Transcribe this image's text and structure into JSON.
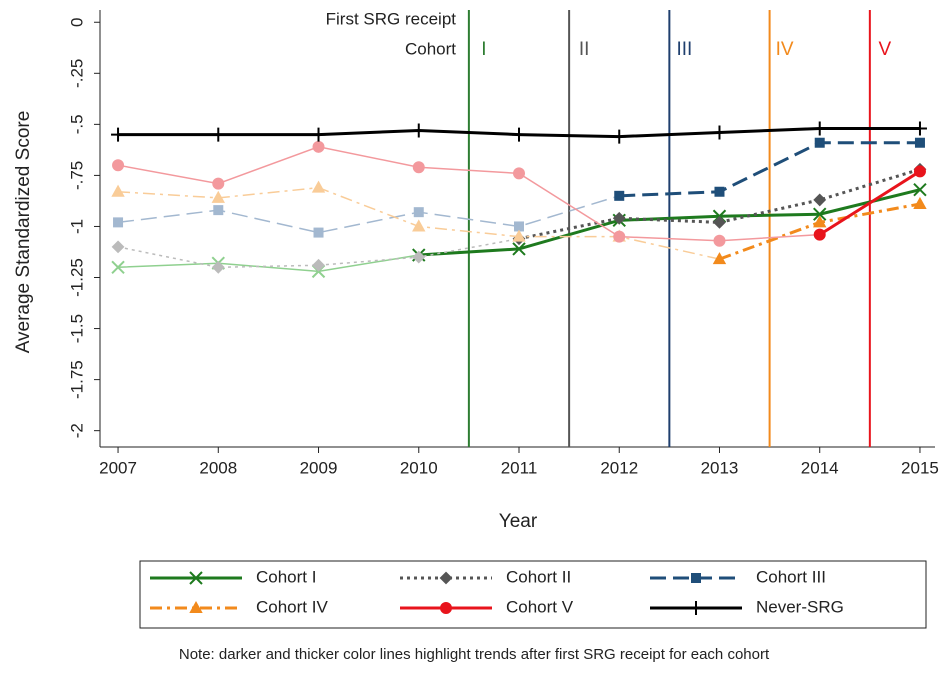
{
  "chart_data": {
    "type": "line",
    "x_label": "Year",
    "y_label": "Average Standardized Score",
    "annotation_lines": [
      "First SRG receipt",
      "Cohort"
    ],
    "note": "Note: darker and thicker color lines highlight trends after first SRG receipt for each cohort",
    "x": [
      2007,
      2008,
      2009,
      2010,
      2011,
      2012,
      2013,
      2014,
      2015
    ],
    "xlim": [
      2006.82,
      2015.15
    ],
    "xticks": [
      2007,
      2008,
      2009,
      2010,
      2011,
      2012,
      2013,
      2014,
      2015
    ],
    "ylim": [
      -2.08,
      0.06
    ],
    "yticks": [
      0,
      {
        "value": -0.25,
        "label": "-.25"
      },
      {
        "value": -0.5,
        "label": "-.5"
      },
      {
        "value": -0.75,
        "label": "-.75"
      },
      -1,
      -1.25,
      {
        "value": -1.5,
        "label": "-1.5"
      },
      -1.75,
      -2
    ],
    "vlines": [
      {
        "x": 2010.5,
        "label": "I",
        "color": "#2e7d32"
      },
      {
        "x": 2011.5,
        "label": "II",
        "color": "#555555"
      },
      {
        "x": 2012.5,
        "label": "III",
        "color": "#1f3f6e"
      },
      {
        "x": 2013.5,
        "label": "IV",
        "color": "#f28a1c"
      },
      {
        "x": 2014.5,
        "label": "V",
        "color": "#e8141c"
      }
    ],
    "series": [
      {
        "name": "Cohort I",
        "color": "#1e7a1e",
        "light_color": "#8fd08f",
        "marker": "x",
        "dash": "solid",
        "highlight_from": 2010,
        "values": [
          -1.2,
          -1.18,
          -1.22,
          -1.14,
          -1.11,
          -0.97,
          -0.95,
          -0.94,
          -0.82
        ]
      },
      {
        "name": "Cohort II",
        "color": "#555555",
        "light_color": "#bbbbbb",
        "marker": "diamond",
        "dash": "dot",
        "highlight_from": 2011,
        "values": [
          -1.1,
          -1.2,
          -1.19,
          -1.15,
          -1.06,
          -0.96,
          -0.98,
          -0.87,
          -0.72
        ]
      },
      {
        "name": "Cohort III",
        "color": "#1f4e79",
        "light_color": "#a3b8d0",
        "marker": "square",
        "dash": "longdash",
        "highlight_from": 2012,
        "values": [
          -0.98,
          -0.92,
          -1.03,
          -0.93,
          -1.0,
          -0.85,
          -0.83,
          -0.59,
          -0.59
        ]
      },
      {
        "name": "Cohort IV",
        "color": "#f28a1c",
        "light_color": "#f9cc98",
        "marker": "triangle",
        "dash": "dashdot",
        "highlight_from": 2013,
        "values": [
          -0.83,
          -0.86,
          -0.81,
          -1.0,
          -1.05,
          -1.05,
          -1.16,
          -0.98,
          -0.89
        ]
      },
      {
        "name": "Cohort V",
        "color": "#e8141c",
        "light_color": "#f3999d",
        "marker": "circle",
        "dash": "solid",
        "highlight_from": 2014,
        "values": [
          -0.7,
          -0.79,
          -0.61,
          -0.71,
          -0.74,
          -1.05,
          -1.07,
          -1.04,
          -0.73
        ]
      },
      {
        "name": "Never-SRG",
        "color": "#000000",
        "light_color": "#000000",
        "marker": "plus",
        "dash": "solid",
        "highlight_from": 2007,
        "values": [
          -0.55,
          -0.55,
          -0.55,
          -0.53,
          -0.55,
          -0.56,
          -0.54,
          -0.52,
          -0.52
        ]
      }
    ]
  }
}
